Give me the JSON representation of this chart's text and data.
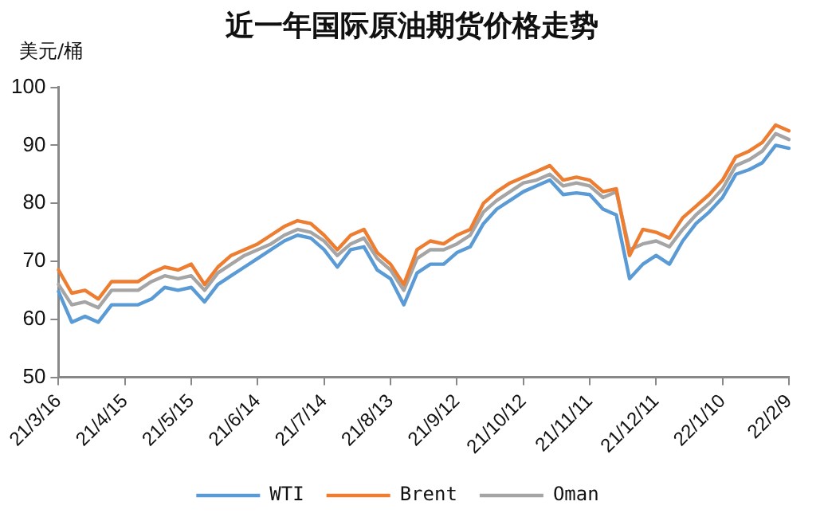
{
  "chart_data": {
    "type": "line",
    "title": "近一年国际原油期货价格走势",
    "ylabel": "美元/桶",
    "categories": [
      "21/3/16",
      null,
      null,
      null,
      null,
      "21/4/15",
      null,
      null,
      null,
      null,
      "21/5/15",
      null,
      null,
      null,
      null,
      "21/6/14",
      null,
      null,
      null,
      null,
      "21/7/14",
      null,
      null,
      null,
      null,
      "21/8/13",
      null,
      null,
      null,
      null,
      "21/9/12",
      null,
      null,
      null,
      null,
      "21/10/12",
      null,
      null,
      null,
      null,
      "21/11/11",
      null,
      null,
      null,
      null,
      "21/12/11",
      null,
      null,
      null,
      null,
      "22/1/10",
      null,
      null,
      null,
      null,
      "22/2/9"
    ],
    "series": [
      {
        "name": "WTI",
        "color": "#5b9bd5",
        "values": [
          64.8,
          59.5,
          60.5,
          59.5,
          62.5,
          62.5,
          62.5,
          63.5,
          65.5,
          65,
          65.5,
          63,
          66,
          67.5,
          69,
          70.5,
          72,
          73.5,
          74.5,
          74,
          72,
          69,
          72,
          72.5,
          68.5,
          67,
          62.5,
          68,
          69.5,
          69.5,
          71.5,
          72.5,
          76.5,
          79,
          80.5,
          82,
          83,
          84,
          81.5,
          81.8,
          81.5,
          79,
          78,
          67,
          69.5,
          71,
          69.5,
          73.5,
          76.5,
          78.5,
          81,
          85,
          85.8,
          87,
          90,
          89.5
        ]
      },
      {
        "name": "Brent",
        "color": "#ed7d31",
        "values": [
          68.5,
          64.5,
          65,
          63.5,
          66.5,
          66.5,
          66.5,
          68,
          69,
          68.5,
          69.5,
          66,
          69,
          71,
          72,
          73,
          74.5,
          76,
          77,
          76.5,
          74.5,
          72,
          74.5,
          75.5,
          71.5,
          69.5,
          66,
          72,
          73.5,
          73,
          74.5,
          75.5,
          80,
          82,
          83.5,
          84.5,
          85.5,
          86.5,
          84,
          84.5,
          84,
          82,
          82.5,
          71,
          75.5,
          75,
          74,
          77.5,
          79.5,
          81.5,
          84,
          88,
          89,
          90.5,
          93.5,
          92.5
        ]
      },
      {
        "name": "Oman",
        "color": "#a5a5a5",
        "values": [
          66,
          62.5,
          63,
          62,
          65,
          65,
          65,
          66.5,
          67.5,
          67,
          67.5,
          65,
          68,
          69.5,
          71,
          72,
          73,
          74.5,
          75.5,
          75,
          73.5,
          71,
          73,
          74,
          70.5,
          68.5,
          65,
          70.5,
          72,
          72,
          73,
          74.5,
          78.5,
          80.5,
          82,
          83.5,
          84,
          85,
          83,
          83.5,
          83,
          81,
          82,
          72,
          73,
          73.5,
          72.5,
          75.5,
          78,
          80,
          82.5,
          86.5,
          87.5,
          89,
          92,
          91
        ]
      }
    ],
    "ylim": [
      50,
      100
    ],
    "yticks": [
      50,
      60,
      70,
      80,
      90,
      100
    ],
    "grid": false,
    "legend": "bottom",
    "marker": "none",
    "line_style": "solid"
  }
}
